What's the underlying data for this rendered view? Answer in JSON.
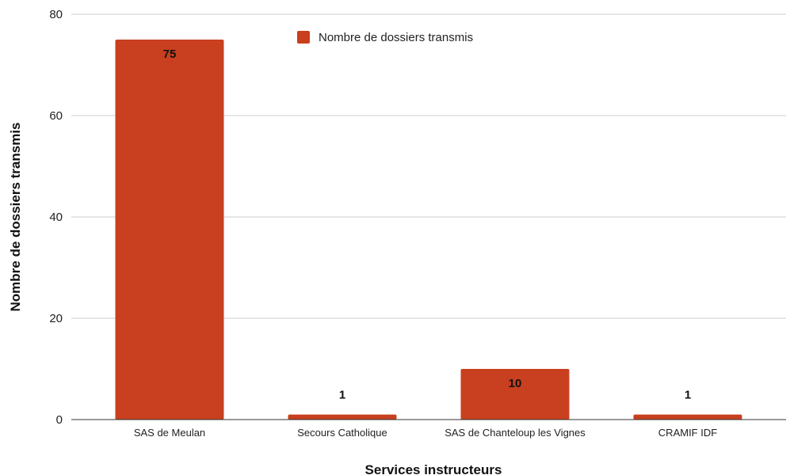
{
  "chart_data": {
    "type": "bar",
    "categories": [
      "SAS de Meulan",
      "Secours Catholique",
      "SAS de Chanteloup les Vignes",
      "CRAMIF IDF"
    ],
    "series": [
      {
        "name": "Nombre de dossiers transmis",
        "values": [
          75,
          1,
          10,
          1
        ]
      }
    ],
    "title": "",
    "xlabel": "Services instructeurs",
    "ylabel": "Nombre de dossiers transmis",
    "ylim": [
      0,
      80
    ],
    "yticks": [
      0,
      20,
      40,
      60,
      80
    ],
    "grid": true,
    "legend": "top-center",
    "bar_color": "#c8401f",
    "data_labels": [
      "75",
      "1",
      "10",
      "1"
    ]
  }
}
